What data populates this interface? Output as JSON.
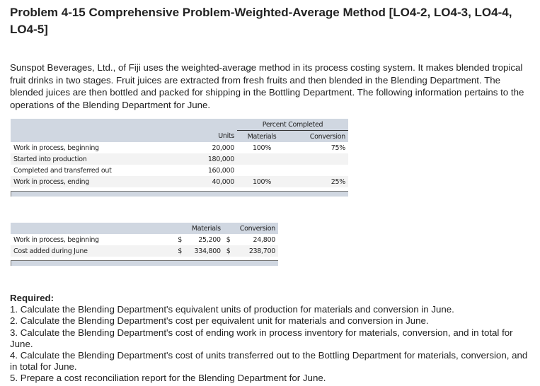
{
  "title": "Problem 4-15 Comprehensive Problem-Weighted-Average Method [LO4-2, LO4-3, LO4-4, LO4-5]",
  "intro": "Sunspot Beverages, Ltd., of Fiji uses the weighted-average method in its process costing system. It makes blended tropical fruit drinks in two stages. Fruit juices are extracted from fresh fruits and then blended in the Blending Department. The blended juices are then bottled and packed for shipping in the Bottling Department. The following information pertains to the operations of the Blending Department for June.",
  "units_table": {
    "group_header": "Percent Completed",
    "headers": [
      "Units",
      "Materials",
      "Conversion"
    ],
    "rows": [
      {
        "label": "Work in process, beginning",
        "units": "20,000",
        "materials": "100%",
        "conversion": "75%"
      },
      {
        "label": "Started into production",
        "units": "180,000",
        "materials": "",
        "conversion": ""
      },
      {
        "label": "Completed and transferred out",
        "units": "160,000",
        "materials": "",
        "conversion": ""
      },
      {
        "label": "Work in process, ending",
        "units": "40,000",
        "materials": "100%",
        "conversion": "25%"
      }
    ]
  },
  "cost_table": {
    "headers": [
      "Materials",
      "Conversion"
    ],
    "rows": [
      {
        "label": "Work in process, beginning",
        "cur1": "$",
        "materials": "25,200",
        "cur2": "$",
        "conversion": "24,800"
      },
      {
        "label": "Cost added during June",
        "cur1": "$",
        "materials": "334,800",
        "cur2": "$",
        "conversion": "238,700"
      }
    ]
  },
  "required": {
    "heading": "Required:",
    "items": [
      "1. Calculate the Blending Department's equivalent units of production for materials and conversion in June.",
      "2. Calculate the Blending Department's cost per equivalent unit for materials and conversion in June.",
      "3. Calculate the Blending Department's cost of ending work in process inventory for materials, conversion, and in total for June.",
      "4. Calculate the Blending Department's cost of units transferred out to the Bottling Department for materials, conversion, and in total for June.",
      "5. Prepare a cost reconciliation report for the Blending Department for June."
    ]
  }
}
